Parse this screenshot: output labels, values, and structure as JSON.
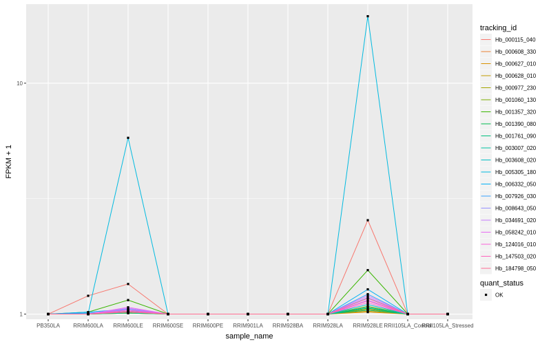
{
  "chart_data": {
    "type": "line",
    "xlabel": "sample_name",
    "ylabel": "FPKM + 1",
    "y_scale": "log10",
    "ylim": [
      0.95,
      22
    ],
    "y_ticks": [
      1,
      10
    ],
    "y_tick_labels": [
      "1",
      "10"
    ],
    "background": "#ebebeb",
    "grid": true,
    "legend_position": "right",
    "categories": [
      "PB350LA",
      "RRIM600LA",
      "RRIM600LE",
      "RRIM600SE",
      "RRIM600PE",
      "RRIM901LA",
      "RRIM928BA",
      "RRIM928LA",
      "RRIM928LE",
      "RRII105LA_Control",
      "RRII105LA_Stressed"
    ],
    "legend_title": "tracking_id",
    "series": [
      {
        "name": "Hb_000115_040",
        "color": "#F8766D",
        "values": [
          1,
          1.2,
          1.35,
          1,
          1,
          1,
          1,
          1,
          2.55,
          1,
          1
        ]
      },
      {
        "name": "Hb_000608_330",
        "color": "#EA8331",
        "values": [
          1,
          1,
          1.02,
          1,
          1,
          1,
          1,
          1,
          1.04,
          1,
          1
        ]
      },
      {
        "name": "Hb_000627_010",
        "color": "#D89000",
        "values": [
          1,
          1,
          1.01,
          1,
          1,
          1,
          1,
          1,
          1.02,
          1,
          1
        ]
      },
      {
        "name": "Hb_000628_010",
        "color": "#C09B00",
        "values": [
          1,
          1,
          1.01,
          1,
          1,
          1,
          1,
          1,
          1.03,
          1,
          1
        ]
      },
      {
        "name": "Hb_000977_230",
        "color": "#A3A500",
        "values": [
          1,
          1,
          1.02,
          1,
          1,
          1,
          1,
          1,
          1.05,
          1,
          1
        ]
      },
      {
        "name": "Hb_001060_130",
        "color": "#7CAE00",
        "values": [
          1,
          1,
          1.03,
          1,
          1,
          1,
          1,
          1,
          1.08,
          1,
          1
        ]
      },
      {
        "name": "Hb_001357_320",
        "color": "#39B600",
        "values": [
          1,
          1.02,
          1.15,
          1,
          1,
          1,
          1,
          1,
          1.55,
          1,
          1
        ]
      },
      {
        "name": "Hb_001390_080",
        "color": "#00BB4E",
        "values": [
          1,
          1,
          1.02,
          1,
          1,
          1,
          1,
          1,
          1.06,
          1,
          1
        ]
      },
      {
        "name": "Hb_001761_090",
        "color": "#00BF7D",
        "values": [
          1,
          1,
          1.01,
          1,
          1,
          1,
          1,
          1,
          1.04,
          1,
          1
        ]
      },
      {
        "name": "Hb_003007_020",
        "color": "#00C1A3",
        "values": [
          1,
          1,
          1.02,
          1,
          1,
          1,
          1,
          1,
          1.07,
          1,
          1
        ]
      },
      {
        "name": "Hb_003608_020",
        "color": "#00BFC4",
        "values": [
          1,
          1,
          1.03,
          1,
          1,
          1,
          1,
          1,
          1.1,
          1,
          1
        ]
      },
      {
        "name": "Hb_005305_180",
        "color": "#00BAE0",
        "values": [
          1,
          1.01,
          5.8,
          1,
          1,
          1,
          1,
          1,
          19.5,
          1,
          1
        ]
      },
      {
        "name": "Hb_006332_050",
        "color": "#00B0F6",
        "values": [
          1,
          1.02,
          1.05,
          1,
          1,
          1,
          1,
          1,
          1.28,
          1,
          1
        ]
      },
      {
        "name": "Hb_007926_030",
        "color": "#35A2FF",
        "values": [
          1,
          1.01,
          1.04,
          1,
          1,
          1,
          1,
          1,
          1.22,
          1,
          1
        ]
      },
      {
        "name": "Hb_008643_050",
        "color": "#9590FF",
        "values": [
          1,
          1,
          1.05,
          1,
          1,
          1,
          1,
          1,
          1.18,
          1,
          1
        ]
      },
      {
        "name": "Hb_034691_020",
        "color": "#C77CFF",
        "values": [
          1,
          1,
          1.06,
          1,
          1,
          1,
          1,
          1,
          1.15,
          1,
          1
        ]
      },
      {
        "name": "Hb_058242_010",
        "color": "#E76BF3",
        "values": [
          1,
          1,
          1.07,
          1,
          1,
          1,
          1,
          1,
          1.2,
          1,
          1
        ]
      },
      {
        "name": "Hb_124016_010",
        "color": "#FA62DB",
        "values": [
          1,
          1,
          1.04,
          1,
          1,
          1,
          1,
          1,
          1.12,
          1,
          1
        ]
      },
      {
        "name": "Hb_147503_020",
        "color": "#FF62BC",
        "values": [
          1,
          1,
          1.03,
          1,
          1,
          1,
          1,
          1,
          1.14,
          1,
          1
        ]
      },
      {
        "name": "Hb_184798_050",
        "color": "#FF6C91",
        "values": [
          1,
          1,
          1.02,
          1,
          1,
          1,
          1,
          1,
          1.17,
          1,
          1
        ]
      }
    ],
    "shape_legend": {
      "title": "quant_status",
      "items": [
        {
          "label": "OK",
          "shape": "square",
          "color": "#000000"
        }
      ]
    }
  }
}
